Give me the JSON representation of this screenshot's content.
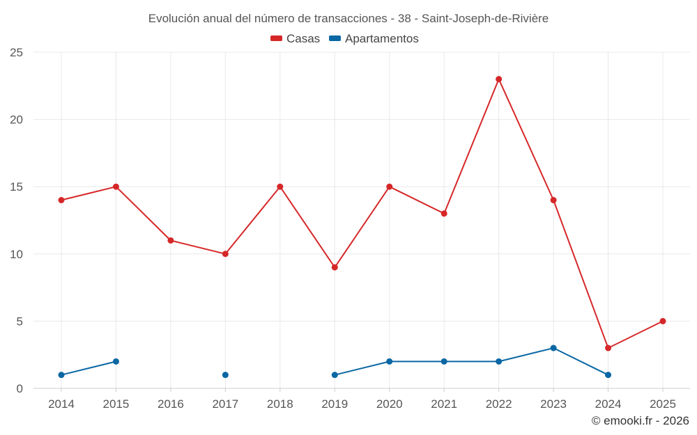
{
  "chart_data": {
    "type": "line",
    "title": "Evolución anual del número de transacciones - 38 - Saint-Joseph-de-Rivière",
    "categories": [
      "2014",
      "2015",
      "2016",
      "2017",
      "2018",
      "2019",
      "2020",
      "2021",
      "2022",
      "2023",
      "2024",
      "2025"
    ],
    "series": [
      {
        "name": "Casas",
        "color": "#d62728",
        "values": [
          14,
          15,
          11,
          10,
          15,
          9,
          15,
          13,
          23,
          14,
          3,
          5
        ]
      },
      {
        "name": "Apartamentos",
        "color": "#0a67a3",
        "values": [
          1,
          2,
          null,
          1,
          null,
          1,
          2,
          2,
          2,
          3,
          1,
          null
        ]
      }
    ],
    "ylim": [
      0,
      25
    ],
    "yticks": [
      0,
      5,
      10,
      15,
      20,
      25
    ],
    "xlabel": "",
    "ylabel": "",
    "grid": true,
    "legend": "top-center"
  },
  "credit": "© emooki.fr - 2026"
}
